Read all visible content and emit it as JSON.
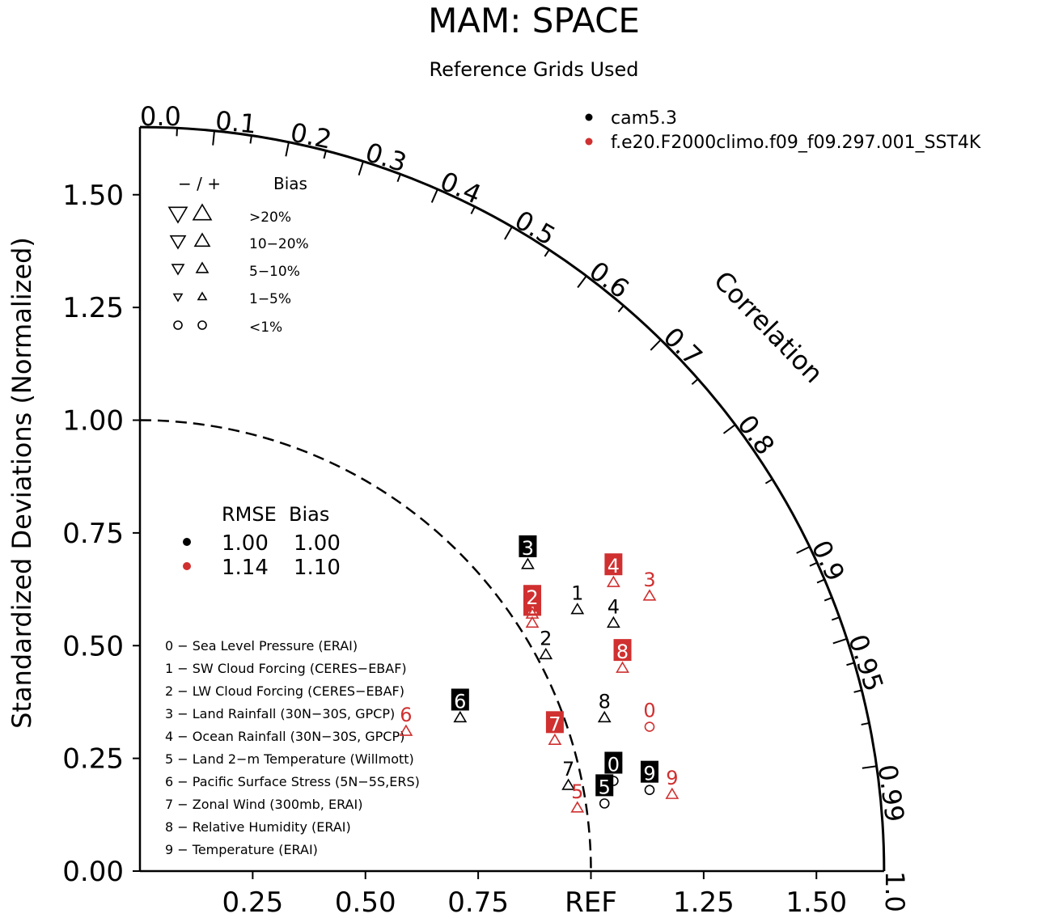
{
  "chart_data": {
    "type": "scatter",
    "subtype": "taylor-diagram",
    "title": "MAM: SPACE",
    "subtitle": "Reference Grids Used",
    "ylabel": "Standardized Deviations (Normalized)",
    "correlation_label": "Correlation",
    "x_ticks": [
      "0.25",
      "0.50",
      "0.75",
      "REF",
      "1.25",
      "1.50"
    ],
    "x_tick_values": [
      0.25,
      0.5,
      0.75,
      1.0,
      1.25,
      1.5
    ],
    "y_ticks": [
      "0.00",
      "0.25",
      "0.50",
      "0.75",
      "1.00",
      "1.25",
      "1.50"
    ],
    "y_tick_values": [
      0,
      0.25,
      0.5,
      0.75,
      1.0,
      1.25,
      1.5
    ],
    "corr_labels": [
      "0.0",
      "0.1",
      "0.2",
      "0.3",
      "0.4",
      "0.5",
      "0.6",
      "0.7",
      "0.8",
      "0.9",
      "0.95",
      "0.99",
      "1.0"
    ],
    "corr_label_values": [
      0.0,
      0.1,
      0.2,
      0.3,
      0.4,
      0.5,
      0.6,
      0.7,
      0.8,
      0.9,
      0.95,
      0.99,
      1.0
    ],
    "corr_major_ticks": [
      0.1,
      0.2,
      0.3,
      0.4,
      0.5,
      0.6,
      0.7,
      0.8,
      0.9,
      0.95,
      0.99
    ],
    "corr_minor_ticks": [
      0.05,
      0.15,
      0.25,
      0.35,
      0.45,
      0.55,
      0.65,
      0.75,
      0.85,
      0.91,
      0.92,
      0.93,
      0.94,
      0.96,
      0.97,
      0.98
    ],
    "max_std": 1.65,
    "ref_std": 1.0,
    "legend": {
      "models": [
        {
          "name": "cam5.3",
          "color": "#000000"
        },
        {
          "name": "f.e20.F2000climo.f09_f09.297.001_SST4K",
          "color": "#d03030"
        }
      ]
    },
    "bias_key": {
      "header_sign": "−  /  +",
      "header_label": "Bias",
      "rows": [
        {
          "label": ">20%",
          "size": 11
        },
        {
          "label": "10−20%",
          "size": 9
        },
        {
          "label": "5−10%",
          "size": 7
        },
        {
          "label": "1−5%",
          "size": 5
        },
        {
          "label": "<1%",
          "size": 0
        }
      ]
    },
    "summary": {
      "header": "RMSE  Bias",
      "rows": [
        {
          "color": "#000000",
          "rmse": "1.00",
          "bias": "1.00"
        },
        {
          "color": "#d03030",
          "rmse": "1.14",
          "bias": "1.10"
        }
      ]
    },
    "variables": [
      "0 − Sea Level Pressure (ERAI)",
      "1 − SW Cloud Forcing (CERES−EBAF)",
      "2 − LW Cloud Forcing (CERES−EBAF)",
      "3 − Land Rainfall (30N−30S, GPCP)",
      "4 − Ocean Rainfall (30N−30S, GPCP)",
      "5 − Land 2−m Temperature (Willmott)",
      "6 − Pacific Surface Stress (5N−5S,ERS)",
      "7 − Zonal Wind (300mb, ERAI)",
      "8 − Relative Humidity (ERAI)",
      "9 − Temperature (ERAI)"
    ],
    "series": [
      {
        "name": "cam5.3",
        "color": "#000000",
        "points": [
          {
            "label": "0",
            "x": 1.05,
            "y": 0.2,
            "shape": "circle",
            "boxed": true
          },
          {
            "label": "1",
            "x": 0.97,
            "y": 0.58,
            "shape": "up",
            "boxed": false
          },
          {
            "label": "2",
            "x": 0.9,
            "y": 0.48,
            "shape": "up",
            "boxed": false
          },
          {
            "label": "3",
            "x": 0.86,
            "y": 0.68,
            "shape": "up",
            "boxed": true
          },
          {
            "label": "4",
            "x": 1.05,
            "y": 0.55,
            "shape": "up",
            "boxed": false
          },
          {
            "label": "5",
            "x": 1.03,
            "y": 0.15,
            "shape": "circle",
            "boxed": true
          },
          {
            "label": "6",
            "x": 0.71,
            "y": 0.34,
            "shape": "up",
            "boxed": true
          },
          {
            "label": "7",
            "x": 0.95,
            "y": 0.19,
            "shape": "up",
            "boxed": false
          },
          {
            "label": "8",
            "x": 1.03,
            "y": 0.34,
            "shape": "up",
            "boxed": false
          },
          {
            "label": "9",
            "x": 1.13,
            "y": 0.18,
            "shape": "circle",
            "boxed": true
          }
        ]
      },
      {
        "name": "f.e20.F2000climo.f09_f09.297.001_SST4K",
        "color": "#d03030",
        "points": [
          {
            "label": "0",
            "x": 1.13,
            "y": 0.32,
            "shape": "circle",
            "boxed": false
          },
          {
            "label": "1",
            "x": 0.87,
            "y": 0.55,
            "shape": "up",
            "boxed": true
          },
          {
            "label": "2",
            "x": 0.87,
            "y": 0.57,
            "shape": "up",
            "boxed": true
          },
          {
            "label": "3",
            "x": 1.13,
            "y": 0.61,
            "shape": "up",
            "boxed": false
          },
          {
            "label": "4",
            "x": 1.05,
            "y": 0.64,
            "shape": "up",
            "boxed": true
          },
          {
            "label": "5",
            "x": 0.97,
            "y": 0.14,
            "shape": "up",
            "boxed": false
          },
          {
            "label": "6",
            "x": 0.59,
            "y": 0.31,
            "shape": "up",
            "boxed": false
          },
          {
            "label": "7",
            "x": 0.92,
            "y": 0.29,
            "shape": "up",
            "boxed": true
          },
          {
            "label": "8",
            "x": 1.07,
            "y": 0.45,
            "shape": "up",
            "boxed": true
          },
          {
            "label": "9",
            "x": 1.18,
            "y": 0.17,
            "shape": "up",
            "boxed": false
          }
        ]
      }
    ]
  }
}
